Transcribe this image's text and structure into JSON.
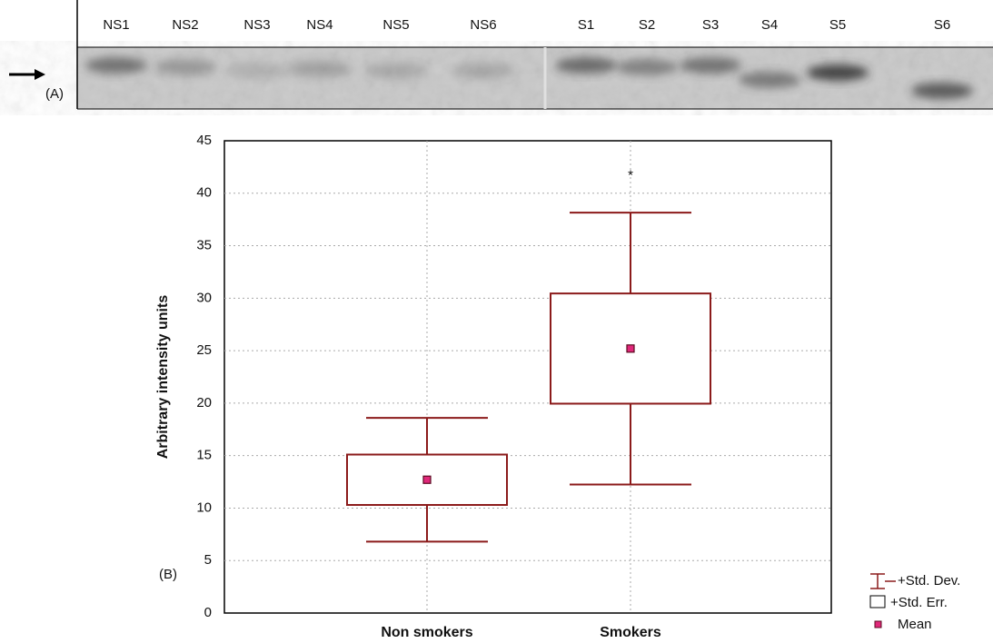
{
  "blot": {
    "lanes": [
      "NS1",
      "NS2",
      "NS3",
      "NS4",
      "NS5",
      "NS6",
      "S1",
      "S2",
      "S3",
      "S4",
      "S5",
      "S6"
    ],
    "panel_label": "(A)"
  },
  "chart_data": {
    "type": "box",
    "panel_label": "(B)",
    "y_label": "Arbitrary intensity units",
    "categories": [
      "Non smokers",
      "Smokers"
    ],
    "mean": [
      12.7,
      25.2
    ],
    "std_err": [
      2.4,
      5.25
    ],
    "std_dev": [
      5.9,
      12.95
    ],
    "color": "#8b1a1a",
    "mean_color": "#e0287a",
    "ylim": [
      0,
      45
    ],
    "yticks": [
      0,
      5,
      10,
      15,
      20,
      25,
      30,
      35,
      40,
      45
    ],
    "grid": true,
    "annotation": {
      "text": "*",
      "category": 1,
      "y": 42
    },
    "legend": {
      "position": "lower right",
      "std_dev": "+Std. Dev.",
      "std_err": "+Std. Err.",
      "mean": "Mean"
    }
  }
}
